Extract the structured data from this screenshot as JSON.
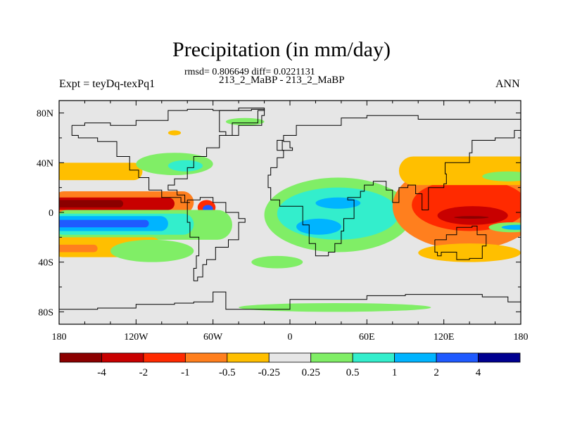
{
  "chart_data": {
    "type": "heatmap",
    "title": "Precipitation (in mm/day)",
    "stats_line": "rmsd= 0.806649 diff= 0.0221131",
    "subtitle": "213_2_MaBP - 213_2_MaBP",
    "left_label": "Expt = teyDq-texPq1",
    "right_label": "ANN",
    "projection": "cylindrical equidistant",
    "xlim": [
      -180,
      180
    ],
    "ylim": [
      -90,
      90
    ],
    "x_ticks": [
      {
        "value": -180,
        "label": "180"
      },
      {
        "value": -120,
        "label": "120W"
      },
      {
        "value": -60,
        "label": "60W"
      },
      {
        "value": 0,
        "label": "0"
      },
      {
        "value": 60,
        "label": "60E"
      },
      {
        "value": 120,
        "label": "120E"
      },
      {
        "value": 180,
        "label": "180"
      }
    ],
    "y_ticks": [
      {
        "value": 80,
        "label": "80N"
      },
      {
        "value": 40,
        "label": "40N"
      },
      {
        "value": 0,
        "label": "0"
      },
      {
        "value": -40,
        "label": "40S"
      },
      {
        "value": -80,
        "label": "80S"
      }
    ],
    "colorbar": {
      "colors": [
        "#8b0000",
        "#c80000",
        "#ff2a00",
        "#ff7f1e",
        "#ffbf00",
        "#e6e6e6",
        "#80ee66",
        "#33eecc",
        "#00b4ff",
        "#1f5aff",
        "#000090"
      ],
      "labels": [
        "-4",
        "-2",
        "-1",
        "-0.5",
        "-0.25",
        "0.25",
        "0.5",
        "1",
        "2",
        "4"
      ]
    },
    "features": [
      {
        "name": "north-pacific-positive-band",
        "lon": [
          -180,
          -95
        ],
        "lat": [
          28,
          38
        ],
        "level": -0.5
      },
      {
        "name": "equatorial-pacific-drier-north",
        "lon": [
          -180,
          -80
        ],
        "lat": [
          3,
          9
        ],
        "level": -3
      },
      {
        "name": "equatorial-pacific-wetter-south",
        "lon": [
          -180,
          -80
        ],
        "lat": [
          -10,
          -3
        ],
        "level": 2
      },
      {
        "name": "south-pacific-drier-band",
        "lon": [
          -180,
          -100
        ],
        "lat": [
          -32,
          -22
        ],
        "level": -0.5
      },
      {
        "name": "africa-indian-ocean-wetter",
        "lon": [
          -10,
          90
        ],
        "lat": [
          -25,
          20
        ],
        "level": 1
      },
      {
        "name": "west-pacific-drier",
        "lon": [
          90,
          180
        ],
        "lat": [
          -20,
          25
        ],
        "level": -1.5
      },
      {
        "name": "west-pacific-maximum",
        "lon": [
          120,
          160
        ],
        "lat": [
          -8,
          2
        ],
        "level": -4
      }
    ]
  }
}
